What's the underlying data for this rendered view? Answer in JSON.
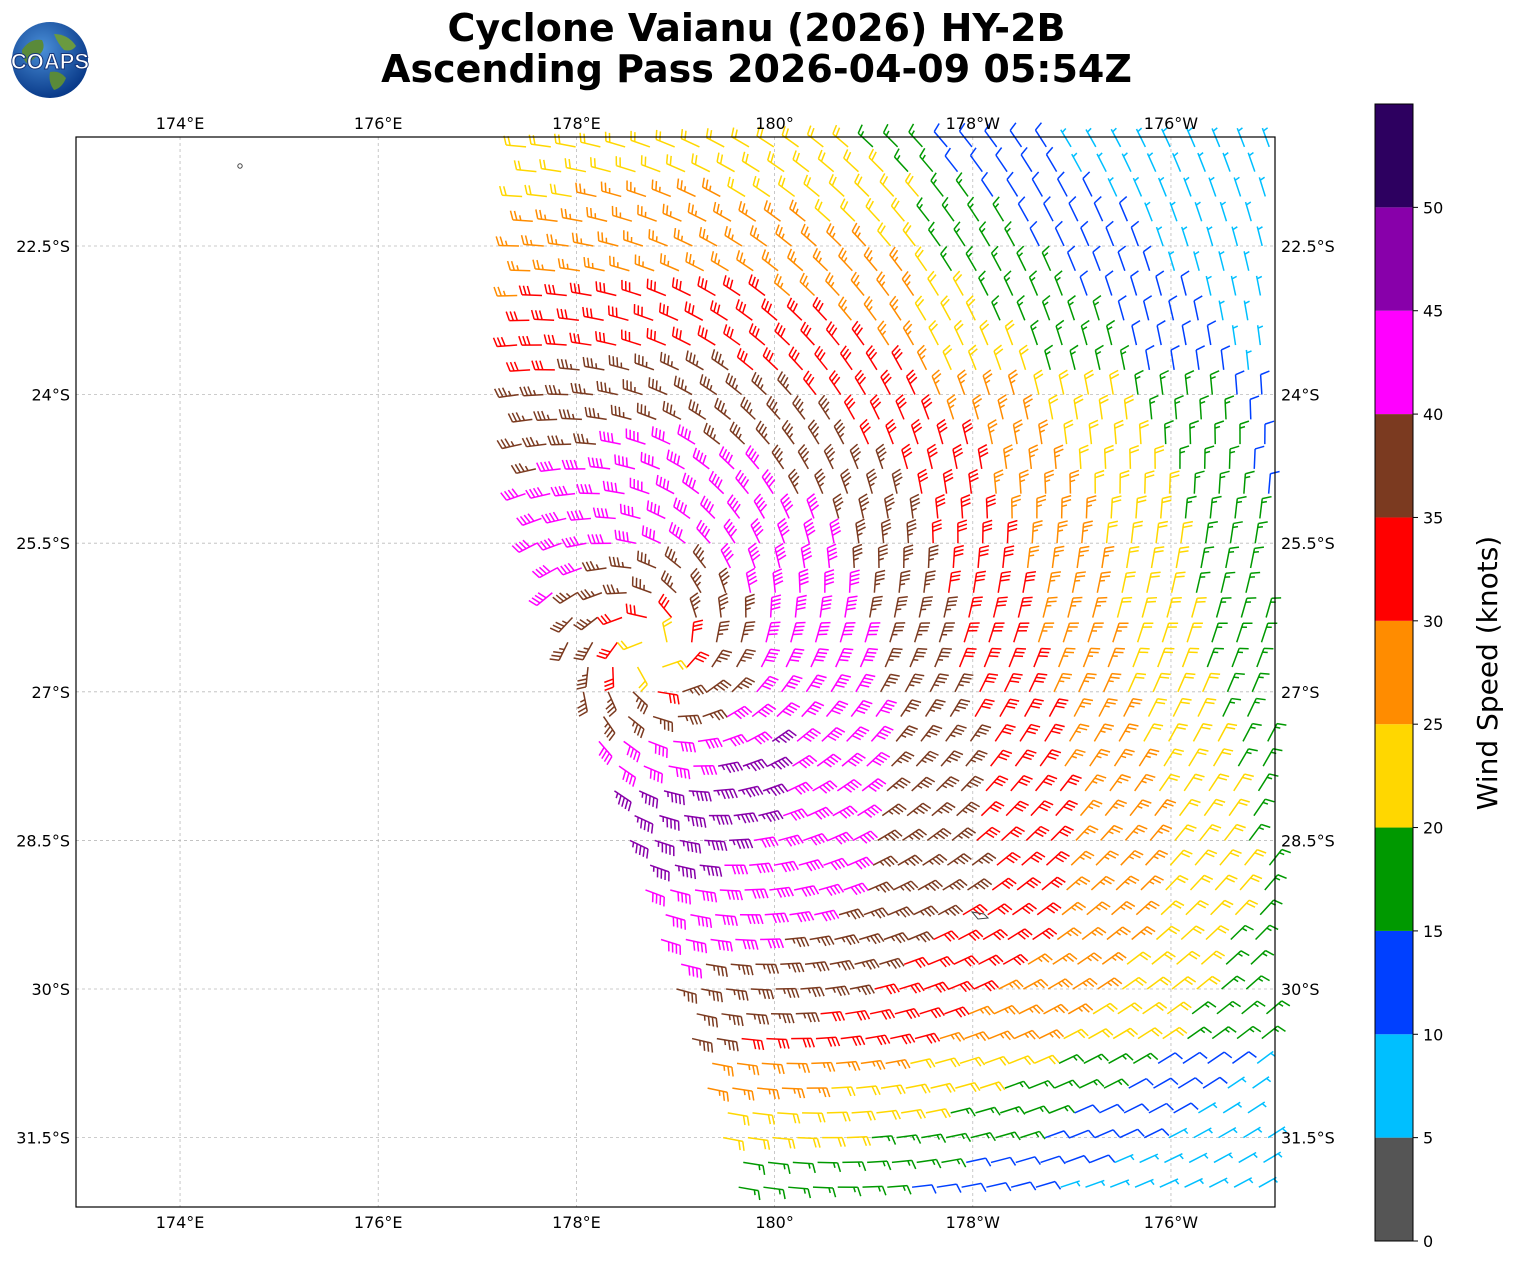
{
  "title_line1": "Cyclone Vaianu (2026) HY-2B",
  "title_line2": "Ascending Pass 2026-04-09 05:54Z",
  "logo_text": "COAPS",
  "map": {
    "lon_ticks": [
      {
        "lon": 174,
        "label": "174°E"
      },
      {
        "lon": 176,
        "label": "176°E"
      },
      {
        "lon": 178,
        "label": "178°E"
      },
      {
        "lon": 180,
        "label": "180°"
      },
      {
        "lon": 182,
        "label": "178°W"
      },
      {
        "lon": 184,
        "label": "176°W"
      }
    ],
    "lat_ticks": [
      {
        "lat": -22.5,
        "label": "22.5°S"
      },
      {
        "lat": -24,
        "label": "24°S"
      },
      {
        "lat": -25.5,
        "label": "25.5°S"
      },
      {
        "lat": -27,
        "label": "27°S"
      },
      {
        "lat": -28.5,
        "label": "28.5°S"
      },
      {
        "lat": -30,
        "label": "30°S"
      },
      {
        "lat": -31.5,
        "label": "31.5°S"
      }
    ],
    "lon_range": [
      172.95,
      185.05
    ],
    "lat_range": [
      -32.2,
      -21.4
    ],
    "grid": true
  },
  "colorbar": {
    "label": "Wind Speed (knots)",
    "bounds": [
      0,
      5,
      10,
      15,
      20,
      25,
      30,
      35,
      40,
      45,
      50,
      55
    ],
    "tick_labels": [
      "0",
      "5",
      "10",
      "15",
      "20",
      "25",
      "30",
      "35",
      "40",
      "45",
      "50"
    ],
    "colors": [
      "#555555",
      "#00bfff",
      "#0040ff",
      "#009900",
      "#ffd700",
      "#ff8c00",
      "#ff0000",
      "#7b3a20",
      "#ff00ff",
      "#8800aa",
      "#2d0060"
    ]
  },
  "chart_data": {
    "type": "wind_barbs",
    "center": {
      "lat": -26.6,
      "lon": 178.75
    },
    "swath": {
      "west_lon_north": 177.5,
      "west_lon_south": 179.7,
      "east_lon": 185.05,
      "lat_top": -21.4,
      "lat_bottom": -32.2
    },
    "spacing_deg": 0.25
  }
}
